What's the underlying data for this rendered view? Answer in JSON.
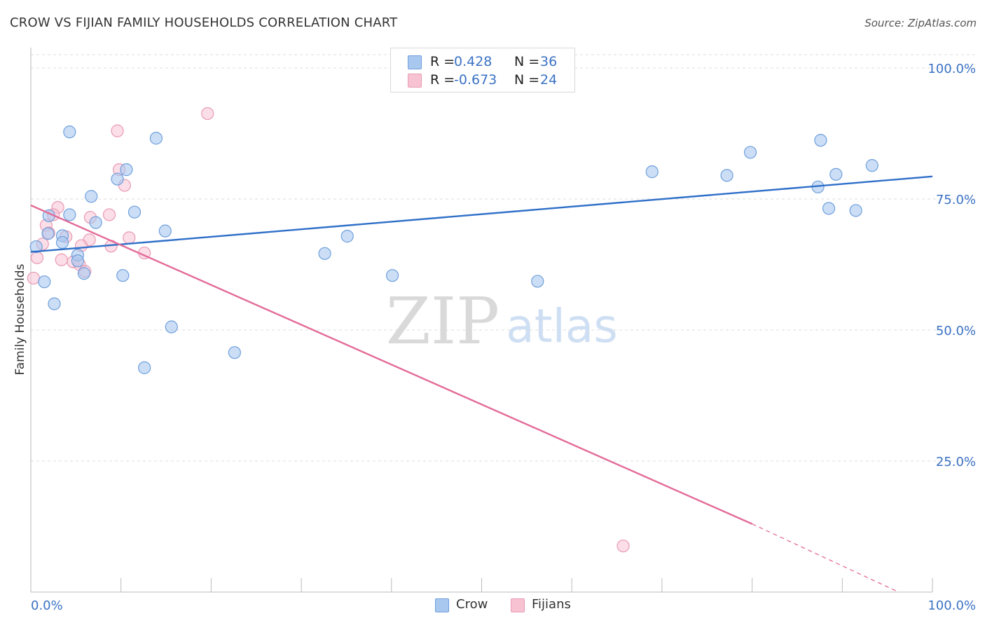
{
  "title": "CROW VS FIJIAN FAMILY HOUSEHOLDS CORRELATION CHART",
  "source": "Source: ZipAtlas.com",
  "watermark": {
    "zip": "ZIP",
    "atlas": "atlas"
  },
  "legend": {
    "crow": {
      "r_label": "R =",
      "r_value": "0.428",
      "n_label": "N =",
      "n_value": "36"
    },
    "fijians": {
      "r_label": "R =",
      "r_value": "-0.673",
      "n_label": "N =",
      "n_value": "24"
    }
  },
  "bottom_legend": {
    "crow": "Crow",
    "fijians": "Fijians"
  },
  "colors": {
    "crow_fill": "#a9c8f0",
    "crow_stroke": "#6f9fdc",
    "crow_line": "#2f6fc9",
    "fij_fill": "#f7c3d3",
    "fij_stroke": "#e99ab3",
    "fij_line": "#e36b98",
    "axis_label": "#3b72c4",
    "grid": "#dddddd"
  },
  "chart_data": {
    "type": "scatter",
    "title": "CROW VS FIJIAN FAMILY HOUSEHOLDS CORRELATION CHART",
    "xlabel": "",
    "ylabel": "Family Households",
    "xlim": [
      0,
      100
    ],
    "ylim": [
      0,
      102
    ],
    "x_tick_labels": [
      {
        "value": 0,
        "label": "0.0%"
      },
      {
        "value": 100,
        "label": "100.0%"
      }
    ],
    "y_tick_labels": [
      {
        "value": 100,
        "label": "100.0%"
      },
      {
        "value": 75,
        "label": "75.0%"
      },
      {
        "value": 50,
        "label": "50.0%"
      },
      {
        "value": 25,
        "label": "25.0%"
      }
    ],
    "series": [
      {
        "name": "Crow",
        "points": [
          [
            4.3,
            87.8
          ],
          [
            13.9,
            86.6
          ],
          [
            9.6,
            78.8
          ],
          [
            10.6,
            80.6
          ],
          [
            6.7,
            75.5
          ],
          [
            4.3,
            72.0
          ],
          [
            11.5,
            72.5
          ],
          [
            7.2,
            70.5
          ],
          [
            2.0,
            71.8
          ],
          [
            1.9,
            68.4
          ],
          [
            14.9,
            68.9
          ],
          [
            3.5,
            68.0
          ],
          [
            3.5,
            66.7
          ],
          [
            0.6,
            65.9
          ],
          [
            5.2,
            64.3
          ],
          [
            5.2,
            63.2
          ],
          [
            5.9,
            60.8
          ],
          [
            10.2,
            60.4
          ],
          [
            1.5,
            59.2
          ],
          [
            2.6,
            55.0
          ],
          [
            15.6,
            50.6
          ],
          [
            12.6,
            42.8
          ],
          [
            22.6,
            45.7
          ],
          [
            32.6,
            64.6
          ],
          [
            35.1,
            67.9
          ],
          [
            40.1,
            60.4
          ],
          [
            56.2,
            59.3
          ],
          [
            68.9,
            80.2
          ],
          [
            77.2,
            79.5
          ],
          [
            79.8,
            83.9
          ],
          [
            87.3,
            77.3
          ],
          [
            87.6,
            86.2
          ],
          [
            88.5,
            73.2
          ],
          [
            89.3,
            79.7
          ],
          [
            91.5,
            72.8
          ],
          [
            93.3,
            81.4
          ]
        ]
      },
      {
        "name": "Fijians",
        "points": [
          [
            19.6,
            91.3
          ],
          [
            9.6,
            88.0
          ],
          [
            9.8,
            80.6
          ],
          [
            10.4,
            77.6
          ],
          [
            3.0,
            73.4
          ],
          [
            2.5,
            72.0
          ],
          [
            6.6,
            71.5
          ],
          [
            8.7,
            72.0
          ],
          [
            1.7,
            70.0
          ],
          [
            2.0,
            68.5
          ],
          [
            6.5,
            67.2
          ],
          [
            3.9,
            67.8
          ],
          [
            10.9,
            67.6
          ],
          [
            1.3,
            66.4
          ],
          [
            5.6,
            66.1
          ],
          [
            8.9,
            66.0
          ],
          [
            12.6,
            64.7
          ],
          [
            0.7,
            63.8
          ],
          [
            3.4,
            63.4
          ],
          [
            4.7,
            63.0
          ],
          [
            5.4,
            62.5
          ],
          [
            6.0,
            61.2
          ],
          [
            0.3,
            59.9
          ],
          [
            65.7,
            8.8
          ]
        ]
      }
    ],
    "trend_lines": [
      {
        "name": "Crow",
        "from": [
          0,
          64.9
        ],
        "to": [
          100,
          79.3
        ]
      },
      {
        "name": "Fijians",
        "from": [
          0,
          73.8
        ],
        "to": [
          80,
          13.0
        ],
        "dashed_to": [
          96,
          0.2
        ]
      }
    ]
  }
}
